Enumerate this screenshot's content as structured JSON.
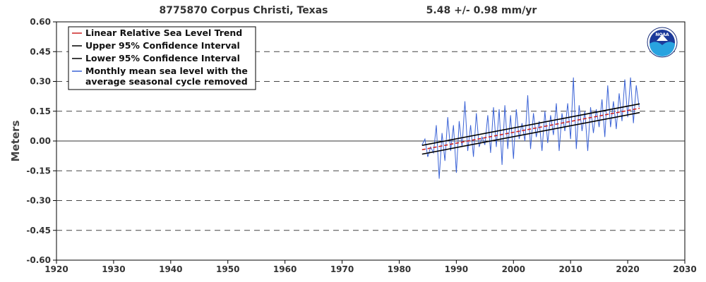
{
  "header": {
    "station": "8775870 Corpus Christi, Texas",
    "trend": "5.48 +/-  0.98 mm/yr"
  },
  "logo": {
    "text": "NOAA"
  },
  "chart_data": {
    "type": "line",
    "title": "8775870 Corpus Christi, Texas",
    "subtitle": "5.48 +/-  0.98 mm/yr",
    "xlabel": "",
    "ylabel": "Meters",
    "xlim": [
      1920,
      2030
    ],
    "ylim": [
      -0.6,
      0.6
    ],
    "xticks": [
      1920,
      1930,
      1940,
      1950,
      1960,
      1970,
      1980,
      1990,
      2000,
      2010,
      2020,
      2030
    ],
    "yticks": [
      0.6,
      0.45,
      0.3,
      0.15,
      0.0,
      -0.15,
      -0.3,
      -0.45,
      -0.6
    ],
    "ytick_labels": [
      "0.60",
      "0.45",
      "0.30",
      "0.15",
      "0.00",
      "-0.15",
      "-0.30",
      "-0.45",
      "-0.60"
    ],
    "xtick_labels": [
      "1920",
      "1930",
      "1940",
      "1950",
      "1960",
      "1970",
      "1980",
      "1990",
      "2000",
      "2010",
      "2020",
      "2030"
    ],
    "grid": "dashed horizontal lines at y ticks",
    "legend_position": "top-left",
    "legend": [
      {
        "label": "Linear Relative Sea Level Trend",
        "color": "#cc2222"
      },
      {
        "label": "Upper 95% Confidence Interval",
        "color": "#000000"
      },
      {
        "label": "Lower 95% Confidence Interval",
        "color": "#000000"
      },
      {
        "label": "Monthly mean sea level with the\naverage seasonal cycle removed",
        "label_lines": [
          "Monthly mean sea level with the",
          "average seasonal cycle removed"
        ],
        "color": "#3b63d6"
      }
    ],
    "series": [
      {
        "name": "Linear Relative Sea Level Trend",
        "color": "#cc2222",
        "dashed": true,
        "x": [
          1984.0,
          2022.1
        ],
        "y": [
          -0.044,
          0.165
        ]
      },
      {
        "name": "Upper 95% Confidence Interval",
        "color": "#000000",
        "x": [
          1984.0,
          2022.1
        ],
        "y": [
          -0.022,
          0.187
        ]
      },
      {
        "name": "Lower 95% Confidence Interval",
        "color": "#000000",
        "x": [
          1984.0,
          2022.1
        ],
        "y": [
          -0.066,
          0.143
        ]
      },
      {
        "name": "Monthly mean sea level with the average seasonal cycle removed",
        "color": "#3b63d6",
        "x": [
          1984.0,
          1984.5,
          1985.0,
          1985.5,
          1986.0,
          1986.5,
          1987.0,
          1987.5,
          1988.0,
          1988.5,
          1989.0,
          1989.5,
          1990.0,
          1990.5,
          1991.0,
          1991.5,
          1992.0,
          1992.5,
          1993.0,
          1993.5,
          1994.0,
          1994.5,
          1995.0,
          1995.5,
          1996.0,
          1996.5,
          1997.0,
          1997.5,
          1998.0,
          1998.5,
          1999.0,
          1999.5,
          2000.0,
          2000.5,
          2001.0,
          2001.5,
          2002.0,
          2002.5,
          2003.0,
          2003.5,
          2004.0,
          2004.5,
          2005.0,
          2005.5,
          2006.0,
          2006.5,
          2007.0,
          2007.5,
          2008.0,
          2008.5,
          2009.0,
          2009.5,
          2010.0,
          2010.5,
          2011.0,
          2011.5,
          2012.0,
          2012.5,
          2013.0,
          2013.5,
          2014.0,
          2014.5,
          2015.0,
          2015.5,
          2016.0,
          2016.5,
          2017.0,
          2017.5,
          2018.0,
          2018.5,
          2019.0,
          2019.5,
          2020.0,
          2020.5,
          2021.0,
          2021.5,
          2022.0
        ],
        "y": [
          -0.02,
          0.01,
          -0.08,
          -0.03,
          -0.06,
          0.08,
          -0.19,
          0.04,
          -0.1,
          0.12,
          -0.05,
          0.08,
          -0.16,
          0.1,
          -0.03,
          0.2,
          -0.05,
          0.08,
          -0.08,
          0.14,
          -0.03,
          0.02,
          -0.02,
          0.13,
          -0.06,
          0.17,
          -0.03,
          0.16,
          -0.12,
          0.18,
          -0.04,
          0.13,
          -0.09,
          0.16,
          0.01,
          0.09,
          0.0,
          0.23,
          -0.04,
          0.14,
          0.02,
          0.1,
          -0.05,
          0.15,
          -0.01,
          0.13,
          0.03,
          0.19,
          -0.05,
          0.14,
          0.05,
          0.19,
          0.01,
          0.32,
          -0.04,
          0.18,
          0.05,
          0.15,
          -0.05,
          0.17,
          0.04,
          0.16,
          0.07,
          0.21,
          0.02,
          0.28,
          0.07,
          0.2,
          0.06,
          0.24,
          0.1,
          0.31,
          0.12,
          0.32,
          0.09,
          0.28,
          0.17
        ]
      }
    ]
  }
}
